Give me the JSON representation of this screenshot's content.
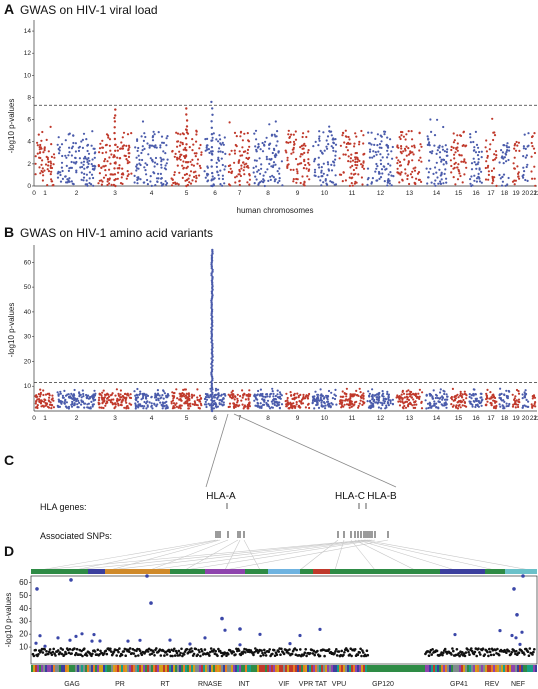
{
  "panels": [
    {
      "label": "A",
      "title": "GWAS on HIV-1 viral load"
    },
    {
      "label": "B",
      "title": "GWAS on HIV-1 amino acid variants"
    },
    {
      "label": "C"
    },
    {
      "label": "D"
    }
  ],
  "chart_data": [
    {
      "type": "scatter",
      "title": "GWAS on HIV-1 viral load",
      "xlabel": "human chromosomes",
      "ylabel": "-log10 p-values",
      "x_ticks": [
        "0",
        "1",
        "2",
        "3",
        "4",
        "5",
        "6",
        "7",
        "8",
        "9",
        "10",
        "11",
        "12",
        "13",
        "14",
        "15",
        "16",
        "17",
        "18",
        "19",
        "20",
        "21",
        "22"
      ],
      "y_ticks": [
        "0",
        "2",
        "4",
        "6",
        "8",
        "10",
        "12",
        "14"
      ],
      "ylim": [
        0,
        15
      ],
      "threshold": 7.3,
      "series_colors": [
        "#c0392b",
        "#4a5bab"
      ],
      "peaks": [
        {
          "chromosome": "3",
          "y": 6.9
        },
        {
          "chromosome": "5",
          "y": 7.0
        },
        {
          "chromosome": "6",
          "y": 7.6
        }
      ]
    },
    {
      "type": "scatter",
      "title": "GWAS on HIV-1 amino acid variants",
      "ylabel": "-log10 p-values",
      "x_ticks": [
        "0",
        "1",
        "2",
        "3",
        "4",
        "5",
        "6",
        "7",
        "8",
        "9",
        "10",
        "11",
        "12",
        "13",
        "14",
        "15",
        "16",
        "17",
        "18",
        "19",
        "20",
        "21",
        "22"
      ],
      "y_ticks": [
        "10",
        "20",
        "30",
        "40",
        "50",
        "60"
      ],
      "ylim": [
        0,
        67
      ],
      "threshold": 11.5,
      "series_colors": [
        "#c0392b",
        "#4a5bab"
      ],
      "peaks": [
        {
          "chromosome": "6",
          "y": 65
        }
      ]
    },
    {
      "type": "diagram",
      "hla_genes_label": "HLA genes:",
      "snps_label": "Associated SNPs:",
      "genes": [
        "HLA-A",
        "HLA-C",
        "HLA-B"
      ]
    },
    {
      "type": "scatter",
      "ylabel": "-log10 p-values",
      "y_ticks": [
        "10",
        "20",
        "30",
        "40",
        "50",
        "60"
      ],
      "ylim": [
        0,
        65
      ],
      "genes": [
        "GAG",
        "PR",
        "RT",
        "RNASE",
        "INT",
        "VIF",
        "VPR",
        "TAT",
        "VPU",
        "GP120",
        "GP41",
        "REV",
        "NEF"
      ],
      "point_color": "#3b47a8",
      "highlights": [
        {
          "gene": "GAG",
          "y": 62
        },
        {
          "gene": "GAG",
          "y": 55
        },
        {
          "gene": "RT",
          "y": 65
        },
        {
          "gene": "RT",
          "y": 44
        },
        {
          "gene": "RNASE",
          "y": 32
        },
        {
          "gene": "INT",
          "y": 24
        },
        {
          "gene": "NEF",
          "y": 65
        },
        {
          "gene": "NEF",
          "y": 55
        },
        {
          "gene": "NEF",
          "y": 35
        }
      ]
    }
  ]
}
